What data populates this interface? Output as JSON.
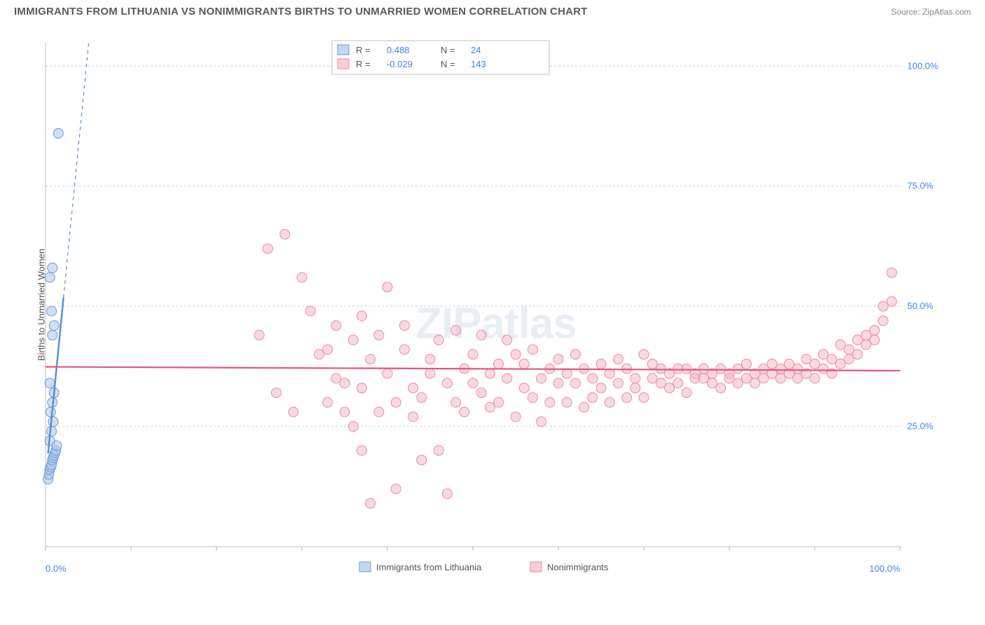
{
  "title": "IMMIGRANTS FROM LITHUANIA VS NONIMMIGRANTS BIRTHS TO UNMARRIED WOMEN CORRELATION CHART",
  "source": "Source: ZipAtlas.com",
  "y_axis_label": "Births to Unmarried Women",
  "watermark": "ZIPatlas",
  "chart": {
    "type": "scatter",
    "xlim": [
      0,
      100
    ],
    "ylim": [
      0,
      105
    ],
    "x_ticks": [
      0,
      10,
      20,
      30,
      40,
      50,
      60,
      70,
      80,
      90,
      100
    ],
    "x_tick_labels": {
      "0": "0.0%",
      "100": "100.0%"
    },
    "y_gridlines": [
      25,
      50,
      75,
      100
    ],
    "y_tick_labels": {
      "25": "25.0%",
      "50": "50.0%",
      "75": "75.0%",
      "100": "100.0%"
    },
    "background_color": "#ffffff",
    "grid_color": "#d0d0d0",
    "axis_color": "#c0c0c0",
    "label_color": "#3b82f6",
    "marker_radius": 7,
    "marker_stroke_width": 1,
    "series": [
      {
        "name": "Immigrants from Lithuania",
        "fill": "#a9c5ea",
        "stroke": "#6b9bd8",
        "fill_opacity": 0.55,
        "R": "0.488",
        "N": "24",
        "trend": {
          "slope_solid": 18.0,
          "intercept_solid": 14.0,
          "x_solid_end": 2.1,
          "slope_dash": 18.0,
          "color": "#5b8fd6",
          "dash": "5,5"
        },
        "points": [
          [
            0.3,
            14
          ],
          [
            0.4,
            15
          ],
          [
            0.5,
            16
          ],
          [
            0.6,
            16.5
          ],
          [
            0.7,
            17
          ],
          [
            0.8,
            18
          ],
          [
            0.9,
            18.5
          ],
          [
            1.0,
            19
          ],
          [
            1.1,
            19.5
          ],
          [
            1.2,
            20
          ],
          [
            1.3,
            21
          ],
          [
            0.5,
            22
          ],
          [
            0.7,
            24
          ],
          [
            0.9,
            26
          ],
          [
            0.6,
            28
          ],
          [
            0.8,
            30
          ],
          [
            1.0,
            32
          ],
          [
            0.5,
            34
          ],
          [
            0.8,
            44
          ],
          [
            1.0,
            46
          ],
          [
            0.7,
            49
          ],
          [
            0.5,
            56
          ],
          [
            0.8,
            58
          ],
          [
            1.5,
            86
          ]
        ]
      },
      {
        "name": "Nonimmigrants",
        "fill": "#f6b9c6",
        "stroke": "#ec8aa2",
        "fill_opacity": 0.55,
        "R": "-0.029",
        "N": "143",
        "trend": {
          "slope_solid": -0.008,
          "intercept_solid": 37.4,
          "color": "#e6557f"
        },
        "points": [
          [
            25,
            44
          ],
          [
            26,
            62
          ],
          [
            27,
            32
          ],
          [
            28,
            65
          ],
          [
            29,
            28
          ],
          [
            30,
            56
          ],
          [
            31,
            49
          ],
          [
            32,
            40
          ],
          [
            33,
            41
          ],
          [
            33,
            30
          ],
          [
            34,
            46
          ],
          [
            34,
            35
          ],
          [
            35,
            28
          ],
          [
            35,
            34
          ],
          [
            36,
            43
          ],
          [
            36,
            25
          ],
          [
            37,
            48
          ],
          [
            37,
            33
          ],
          [
            37,
            20
          ],
          [
            38,
            9
          ],
          [
            38,
            39
          ],
          [
            39,
            44
          ],
          [
            39,
            28
          ],
          [
            40,
            54
          ],
          [
            40,
            36
          ],
          [
            41,
            12
          ],
          [
            41,
            30
          ],
          [
            42,
            41
          ],
          [
            42,
            46
          ],
          [
            43,
            33
          ],
          [
            43,
            27
          ],
          [
            44,
            31
          ],
          [
            44,
            18
          ],
          [
            45,
            39
          ],
          [
            45,
            36
          ],
          [
            46,
            20
          ],
          [
            46,
            43
          ],
          [
            47,
            34
          ],
          [
            47,
            11
          ],
          [
            48,
            30
          ],
          [
            48,
            45
          ],
          [
            49,
            37
          ],
          [
            49,
            28
          ],
          [
            50,
            40
          ],
          [
            50,
            34
          ],
          [
            51,
            32
          ],
          [
            51,
            44
          ],
          [
            52,
            36
          ],
          [
            52,
            29
          ],
          [
            53,
            38
          ],
          [
            53,
            30
          ],
          [
            54,
            43
          ],
          [
            54,
            35
          ],
          [
            55,
            27
          ],
          [
            55,
            40
          ],
          [
            56,
            33
          ],
          [
            56,
            38
          ],
          [
            57,
            31
          ],
          [
            57,
            41
          ],
          [
            58,
            26
          ],
          [
            58,
            35
          ],
          [
            59,
            37
          ],
          [
            59,
            30
          ],
          [
            60,
            39
          ],
          [
            60,
            34
          ],
          [
            61,
            36
          ],
          [
            61,
            30
          ],
          [
            62,
            40
          ],
          [
            62,
            34
          ],
          [
            63,
            29
          ],
          [
            63,
            37
          ],
          [
            64,
            35
          ],
          [
            64,
            31
          ],
          [
            65,
            38
          ],
          [
            65,
            33
          ],
          [
            66,
            30
          ],
          [
            66,
            36
          ],
          [
            67,
            39
          ],
          [
            67,
            34
          ],
          [
            68,
            31
          ],
          [
            68,
            37
          ],
          [
            69,
            35
          ],
          [
            69,
            33
          ],
          [
            70,
            40
          ],
          [
            70,
            31
          ],
          [
            71,
            38
          ],
          [
            71,
            35
          ],
          [
            72,
            34
          ],
          [
            72,
            37
          ],
          [
            73,
            33
          ],
          [
            73,
            36
          ],
          [
            74,
            37
          ],
          [
            74,
            34
          ],
          [
            75,
            37
          ],
          [
            75,
            32
          ],
          [
            76,
            36
          ],
          [
            76,
            35
          ],
          [
            77,
            35
          ],
          [
            77,
            37
          ],
          [
            78,
            34
          ],
          [
            78,
            36
          ],
          [
            79,
            37
          ],
          [
            79,
            33
          ],
          [
            80,
            36
          ],
          [
            80,
            35
          ],
          [
            81,
            37
          ],
          [
            81,
            34
          ],
          [
            82,
            38
          ],
          [
            82,
            35
          ],
          [
            83,
            36
          ],
          [
            83,
            34
          ],
          [
            84,
            37
          ],
          [
            84,
            35
          ],
          [
            85,
            36
          ],
          [
            85,
            38
          ],
          [
            86,
            37
          ],
          [
            86,
            35
          ],
          [
            87,
            36
          ],
          [
            87,
            38
          ],
          [
            88,
            37
          ],
          [
            88,
            35
          ],
          [
            89,
            39
          ],
          [
            89,
            36
          ],
          [
            90,
            38
          ],
          [
            90,
            35
          ],
          [
            91,
            40
          ],
          [
            91,
            37
          ],
          [
            92,
            39
          ],
          [
            92,
            36
          ],
          [
            93,
            42
          ],
          [
            93,
            38
          ],
          [
            94,
            41
          ],
          [
            94,
            39
          ],
          [
            95,
            43
          ],
          [
            95,
            40
          ],
          [
            96,
            44
          ],
          [
            96,
            42
          ],
          [
            97,
            45
          ],
          [
            97,
            43
          ],
          [
            98,
            47
          ],
          [
            98,
            50
          ],
          [
            99,
            51
          ],
          [
            99,
            57
          ]
        ]
      }
    ]
  },
  "legend_top": {
    "border_color": "#c0c0c0",
    "bg": "#ffffff",
    "text_color_label": "#555555",
    "text_color_value": "#3b82f6"
  },
  "bottom_legend": {
    "items": [
      "Immigrants from Lithuania",
      "Nonimmigrants"
    ]
  }
}
